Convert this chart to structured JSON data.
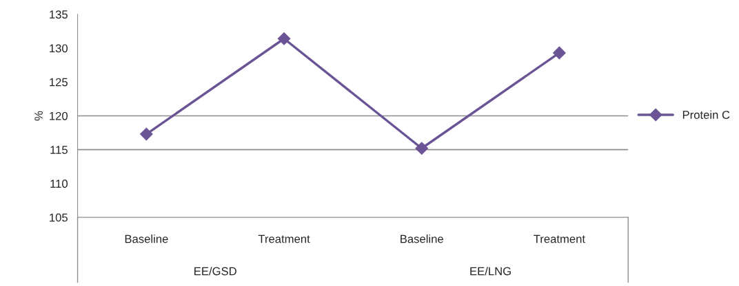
{
  "chart_data": {
    "type": "line",
    "ylabel": "%",
    "categories": [
      "Baseline",
      "Treatment",
      "Baseline",
      "Treatment"
    ],
    "series": [
      {
        "name": "Protein C",
        "color": "#6a5495",
        "values": [
          117.3,
          131.4,
          115.2,
          129.3
        ]
      }
    ],
    "ylim": [
      105,
      135
    ],
    "yticks": [
      105,
      110,
      115,
      120,
      125,
      130,
      135
    ],
    "ref_lines": [
      {
        "axis": "y",
        "value": 115,
        "color": "#8c8c8c"
      },
      {
        "axis": "y",
        "value": 120,
        "color": "#8c8c8c"
      }
    ],
    "annotations": [
      "EE/GSD",
      "EE/LNG"
    ],
    "marker": "diamond",
    "line_style": "solid",
    "legend": "right",
    "grid": false
  }
}
